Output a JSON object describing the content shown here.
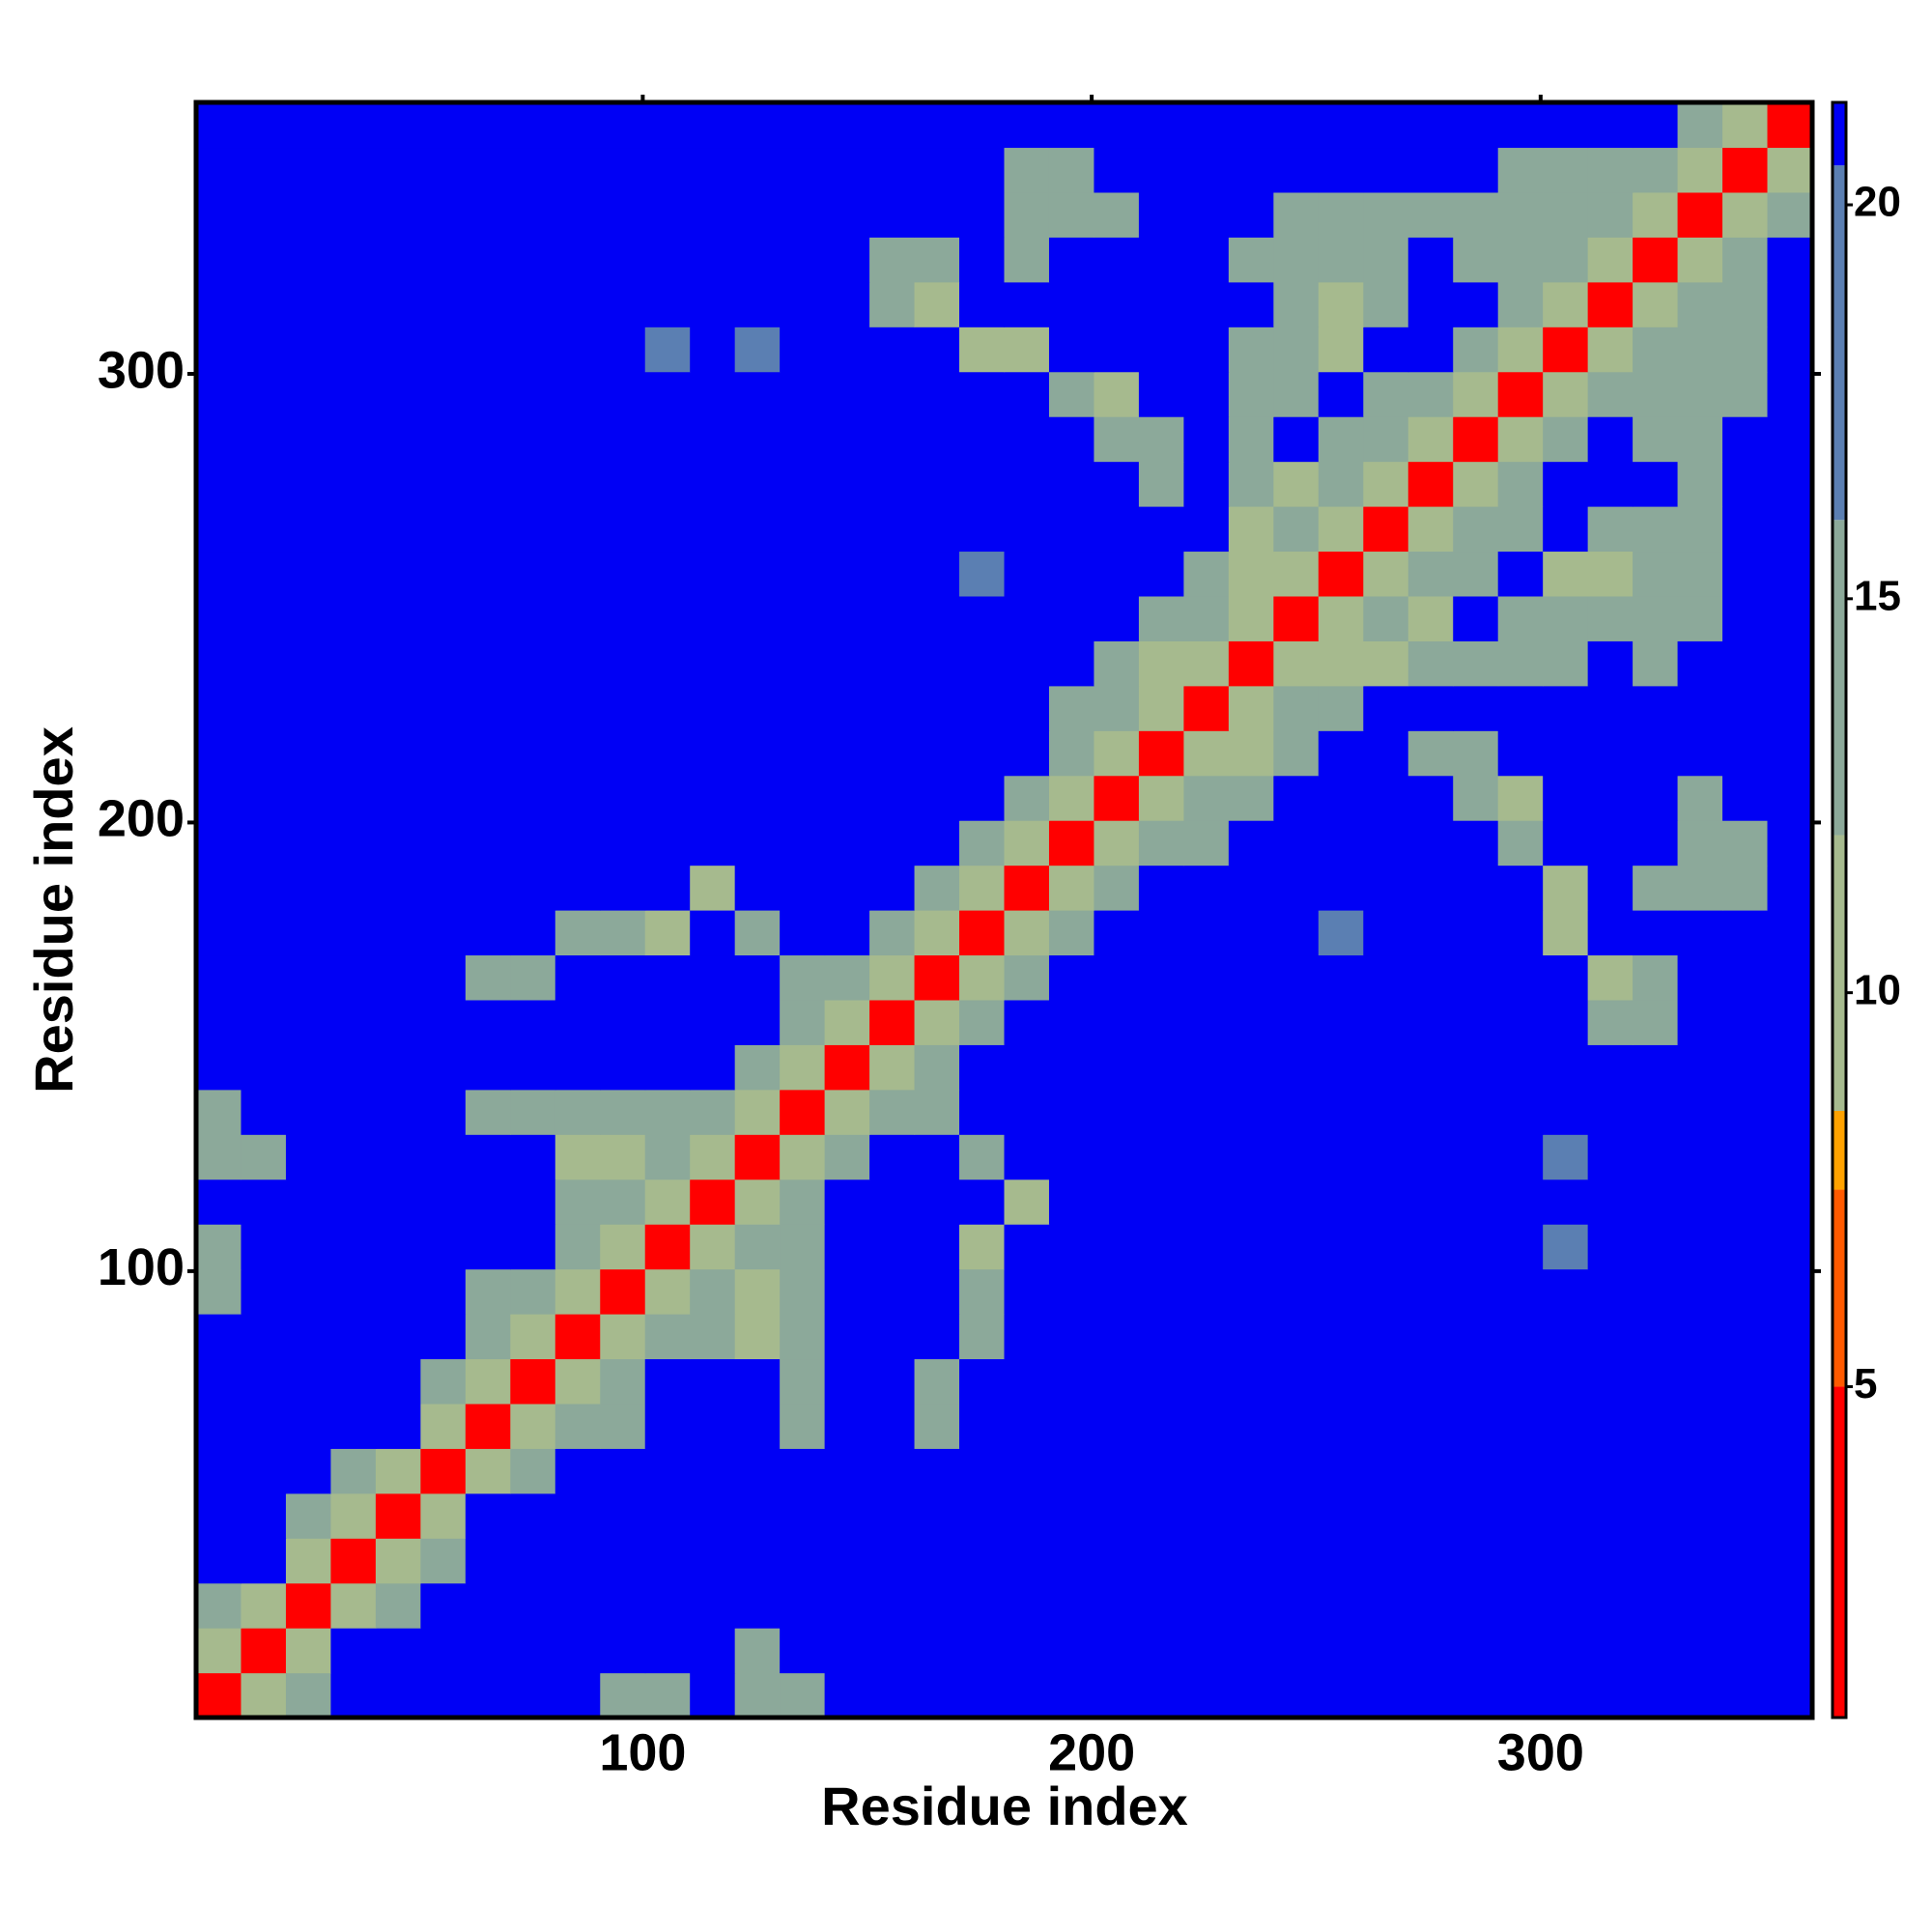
{
  "chart_data": {
    "type": "heatmap",
    "x_label": "Residue index",
    "y_label": "Residue index",
    "bins": [
      0.5,
      10.5,
      20.5,
      30.5,
      40.5,
      50.5,
      60.5,
      70.5,
      80.5,
      90.5,
      100.5,
      110.5,
      120.5,
      130.5,
      140.5,
      150.5,
      160.5,
      170.5,
      180.5,
      190.5,
      200.5,
      210.5,
      220.5,
      230.5,
      240.5,
      250.5,
      260.5,
      270.5,
      280.5,
      290.5,
      300.5,
      310.5,
      320.5,
      330.5,
      340.5,
      350.5,
      360.5
    ],
    "xlim": [
      0.5,
      360.5
    ],
    "ylim": [
      0.5,
      360.5
    ],
    "xticks": [
      100,
      200,
      300
    ],
    "yticks": [
      100,
      200,
      300
    ],
    "zlim": [
      0.8,
      21.3
    ],
    "zticks": [
      5,
      10,
      15,
      20
    ],
    "colorscale": [
      [
        5,
        "#ff0000"
      ],
      [
        7.5,
        "#ff5a00"
      ],
      [
        8.5,
        "#ffa200"
      ],
      [
        12,
        "#a6ba8e"
      ],
      [
        16,
        "#8ca99a"
      ],
      [
        20.5,
        "#5b7fb2"
      ],
      [
        21.3,
        "#0000f5"
      ]
    ],
    "z": [
      [
        4,
        11,
        16,
        21,
        21,
        21,
        21,
        21,
        21,
        16,
        16,
        21,
        15,
        15,
        21,
        21,
        21,
        21,
        21,
        21,
        21,
        21,
        21,
        21,
        21,
        21,
        21,
        21,
        21,
        21,
        21,
        21,
        21,
        21,
        21,
        21
      ],
      [
        11,
        4,
        11,
        21,
        21,
        21,
        21,
        21,
        21,
        21,
        21,
        21,
        15,
        21,
        21,
        21,
        21,
        21,
        21,
        21,
        21,
        21,
        21,
        21,
        21,
        21,
        21,
        21,
        21,
        21,
        21,
        21,
        21,
        21,
        21,
        21
      ],
      [
        16,
        11,
        4,
        11,
        16,
        21,
        21,
        21,
        21,
        21,
        21,
        21,
        21,
        21,
        21,
        21,
        21,
        21,
        21,
        21,
        21,
        21,
        21,
        21,
        21,
        21,
        21,
        21,
        21,
        21,
        21,
        21,
        21,
        21,
        21,
        21
      ],
      [
        21,
        21,
        11,
        4,
        11,
        16,
        21,
        21,
        21,
        21,
        21,
        21,
        21,
        21,
        21,
        21,
        21,
        21,
        21,
        21,
        21,
        21,
        21,
        21,
        21,
        21,
        21,
        21,
        21,
        21,
        21,
        21,
        21,
        21,
        21,
        21
      ],
      [
        21,
        21,
        16,
        11,
        4,
        11,
        21,
        21,
        21,
        21,
        21,
        21,
        21,
        21,
        21,
        21,
        21,
        21,
        21,
        21,
        21,
        21,
        21,
        21,
        21,
        21,
        21,
        21,
        21,
        21,
        21,
        21,
        21,
        21,
        21,
        21
      ],
      [
        21,
        21,
        21,
        16,
        11,
        4,
        11,
        14,
        21,
        21,
        21,
        21,
        21,
        21,
        21,
        21,
        21,
        21,
        21,
        21,
        21,
        21,
        21,
        21,
        21,
        21,
        21,
        21,
        21,
        21,
        21,
        21,
        21,
        21,
        21,
        21
      ],
      [
        21,
        21,
        21,
        21,
        21,
        11,
        4,
        11,
        13,
        15,
        21,
        21,
        21,
        14,
        21,
        21,
        15,
        21,
        21,
        21,
        21,
        21,
        21,
        21,
        21,
        21,
        21,
        21,
        21,
        21,
        21,
        21,
        21,
        21,
        21,
        21
      ],
      [
        21,
        21,
        21,
        21,
        21,
        14,
        11,
        4,
        11,
        14,
        21,
        21,
        21,
        13,
        21,
        21,
        14,
        21,
        21,
        21,
        21,
        21,
        21,
        21,
        21,
        21,
        21,
        21,
        21,
        21,
        21,
        21,
        21,
        21,
        21,
        21
      ],
      [
        21,
        21,
        21,
        21,
        21,
        21,
        13,
        11,
        4,
        11,
        15,
        15,
        12,
        13,
        21,
        21,
        21,
        13,
        21,
        21,
        21,
        21,
        21,
        21,
        21,
        21,
        21,
        21,
        21,
        21,
        21,
        21,
        21,
        21,
        21,
        21
      ],
      [
        16,
        21,
        21,
        21,
        21,
        21,
        15,
        14,
        11,
        4,
        11,
        13,
        12,
        14,
        21,
        21,
        21,
        13,
        21,
        21,
        21,
        21,
        21,
        21,
        21,
        21,
        21,
        21,
        21,
        21,
        21,
        21,
        21,
        21,
        21,
        21
      ],
      [
        16,
        21,
        21,
        21,
        21,
        21,
        21,
        21,
        15,
        11,
        4,
        11,
        13,
        15,
        21,
        21,
        21,
        12,
        21,
        21,
        21,
        21,
        21,
        21,
        21,
        21,
        21,
        21,
        21,
        21,
        18,
        21,
        21,
        21,
        21,
        21
      ],
      [
        21,
        21,
        21,
        21,
        21,
        21,
        21,
        21,
        15,
        13,
        11,
        4,
        11,
        14,
        21,
        21,
        21,
        21,
        12,
        21,
        21,
        21,
        21,
        21,
        21,
        21,
        21,
        21,
        21,
        21,
        21,
        21,
        21,
        21,
        21,
        21
      ],
      [
        15,
        15,
        21,
        21,
        21,
        21,
        21,
        21,
        12,
        12,
        13,
        11,
        4,
        11,
        16,
        21,
        21,
        13,
        21,
        21,
        21,
        21,
        21,
        21,
        21,
        21,
        21,
        21,
        21,
        21,
        18,
        21,
        21,
        21,
        21,
        21
      ],
      [
        15,
        21,
        21,
        21,
        21,
        21,
        14,
        13,
        13,
        14,
        15,
        14,
        11,
        4,
        11,
        15,
        13,
        21,
        21,
        21,
        21,
        21,
        21,
        21,
        21,
        21,
        21,
        21,
        21,
        21,
        21,
        21,
        21,
        21,
        21,
        21
      ],
      [
        21,
        21,
        21,
        21,
        21,
        21,
        21,
        21,
        21,
        21,
        21,
        21,
        16,
        11,
        4,
        11,
        14,
        21,
        21,
        21,
        21,
        21,
        21,
        21,
        21,
        21,
        21,
        21,
        21,
        21,
        21,
        21,
        21,
        21,
        21,
        21
      ],
      [
        21,
        21,
        21,
        21,
        21,
        21,
        21,
        21,
        21,
        21,
        21,
        21,
        21,
        15,
        11,
        4,
        11,
        15,
        21,
        21,
        21,
        21,
        21,
        21,
        21,
        21,
        21,
        21,
        21,
        21,
        21,
        14,
        15,
        21,
        21,
        21
      ],
      [
        21,
        21,
        21,
        21,
        21,
        21,
        15,
        14,
        21,
        21,
        21,
        21,
        21,
        13,
        14,
        11,
        4,
        11,
        15,
        21,
        21,
        21,
        21,
        21,
        21,
        21,
        21,
        21,
        21,
        21,
        21,
        12,
        14,
        21,
        21,
        21
      ],
      [
        21,
        21,
        21,
        21,
        21,
        21,
        21,
        21,
        13,
        13,
        12,
        21,
        13,
        21,
        21,
        15,
        11,
        4,
        11,
        15,
        21,
        21,
        21,
        21,
        21,
        17,
        21,
        21,
        21,
        21,
        12,
        21,
        21,
        21,
        21,
        21
      ],
      [
        21,
        21,
        21,
        21,
        21,
        21,
        21,
        21,
        21,
        21,
        21,
        12,
        21,
        21,
        21,
        21,
        15,
        11,
        4,
        11,
        14,
        21,
        21,
        21,
        21,
        21,
        21,
        21,
        21,
        21,
        12,
        21,
        15,
        14,
        15,
        21
      ],
      [
        21,
        21,
        21,
        21,
        21,
        21,
        21,
        21,
        21,
        21,
        21,
        21,
        21,
        21,
        21,
        21,
        21,
        15,
        11,
        4,
        11,
        13,
        15,
        21,
        21,
        21,
        21,
        21,
        21,
        13,
        21,
        21,
        21,
        13,
        15,
        21
      ],
      [
        21,
        21,
        21,
        21,
        21,
        21,
        21,
        21,
        21,
        21,
        21,
        21,
        21,
        21,
        21,
        21,
        21,
        21,
        14,
        11,
        4,
        11,
        13,
        14,
        21,
        21,
        21,
        21,
        13,
        12,
        21,
        21,
        21,
        15,
        21,
        21
      ],
      [
        21,
        21,
        21,
        21,
        21,
        21,
        21,
        21,
        21,
        21,
        21,
        21,
        21,
        21,
        21,
        21,
        21,
        21,
        21,
        13,
        11,
        4,
        11,
        12,
        13,
        21,
        21,
        14,
        14,
        21,
        21,
        21,
        21,
        21,
        21,
        21
      ],
      [
        21,
        21,
        21,
        21,
        21,
        21,
        21,
        21,
        21,
        21,
        21,
        21,
        21,
        21,
        21,
        21,
        21,
        21,
        21,
        15,
        13,
        11,
        4,
        11,
        14,
        15,
        21,
        21,
        21,
        21,
        21,
        21,
        21,
        21,
        21,
        21
      ],
      [
        21,
        21,
        21,
        21,
        21,
        21,
        21,
        21,
        21,
        21,
        21,
        21,
        21,
        21,
        21,
        21,
        21,
        21,
        21,
        21,
        14,
        12,
        11,
        4,
        11,
        12,
        12,
        13,
        13,
        13,
        14,
        21,
        16,
        21,
        21,
        21
      ],
      [
        21,
        21,
        21,
        21,
        21,
        21,
        21,
        21,
        21,
        21,
        21,
        21,
        21,
        21,
        21,
        21,
        21,
        21,
        21,
        21,
        21,
        13,
        14,
        11,
        4,
        11,
        13,
        12,
        21,
        13,
        14,
        13,
        14,
        15,
        21,
        21
      ],
      [
        21,
        21,
        21,
        21,
        21,
        21,
        21,
        21,
        21,
        21,
        21,
        21,
        21,
        21,
        21,
        21,
        21,
        17,
        21,
        21,
        21,
        21,
        15,
        12,
        11,
        4,
        11,
        14,
        14,
        21,
        12,
        12,
        14,
        14,
        21,
        21
      ],
      [
        21,
        21,
        21,
        21,
        21,
        21,
        21,
        21,
        21,
        21,
        21,
        21,
        21,
        21,
        21,
        21,
        21,
        21,
        21,
        21,
        21,
        21,
        21,
        12,
        13,
        11,
        4,
        11,
        14,
        15,
        21,
        13,
        15,
        14,
        21,
        21
      ],
      [
        21,
        21,
        21,
        21,
        21,
        21,
        21,
        21,
        21,
        21,
        21,
        21,
        21,
        21,
        21,
        21,
        21,
        21,
        21,
        21,
        21,
        14,
        21,
        13,
        12,
        14,
        11,
        4,
        11,
        14,
        21,
        21,
        21,
        14,
        21,
        21
      ],
      [
        21,
        21,
        21,
        21,
        21,
        21,
        21,
        21,
        21,
        21,
        21,
        21,
        21,
        21,
        21,
        21,
        21,
        21,
        21,
        21,
        13,
        14,
        21,
        13,
        21,
        14,
        14,
        11,
        4,
        11,
        13,
        21,
        14,
        14,
        21,
        21
      ],
      [
        21,
        21,
        21,
        21,
        21,
        21,
        21,
        21,
        21,
        21,
        21,
        21,
        21,
        21,
        21,
        21,
        21,
        21,
        21,
        13,
        12,
        21,
        21,
        13,
        13,
        21,
        15,
        14,
        11,
        4,
        11,
        14,
        13,
        13,
        15,
        21
      ],
      [
        21,
        21,
        21,
        21,
        21,
        21,
        21,
        21,
        21,
        21,
        18,
        21,
        18,
        21,
        21,
        21,
        21,
        12,
        12,
        21,
        21,
        21,
        21,
        14,
        14,
        12,
        21,
        21,
        13,
        11,
        4,
        11,
        13,
        13,
        14,
        21
      ],
      [
        21,
        21,
        21,
        21,
        21,
        21,
        21,
        21,
        21,
        21,
        21,
        21,
        21,
        21,
        21,
        14,
        12,
        21,
        21,
        21,
        21,
        21,
        21,
        21,
        13,
        12,
        13,
        21,
        21,
        14,
        11,
        4,
        11,
        14,
        13,
        21
      ],
      [
        21,
        21,
        21,
        21,
        21,
        21,
        21,
        21,
        21,
        21,
        21,
        21,
        21,
        21,
        21,
        15,
        14,
        21,
        15,
        21,
        21,
        21,
        21,
        16,
        14,
        14,
        15,
        21,
        14,
        13,
        13,
        11,
        4,
        11,
        14,
        21
      ],
      [
        21,
        21,
        21,
        21,
        21,
        21,
        21,
        21,
        21,
        21,
        21,
        21,
        21,
        21,
        21,
        21,
        21,
        21,
        14,
        13,
        15,
        21,
        21,
        21,
        15,
        14,
        14,
        14,
        14,
        13,
        13,
        14,
        11,
        4,
        11,
        15
      ],
      [
        21,
        21,
        21,
        21,
        21,
        21,
        21,
        21,
        21,
        21,
        21,
        21,
        21,
        21,
        21,
        21,
        21,
        21,
        15,
        15,
        21,
        21,
        21,
        21,
        21,
        21,
        21,
        21,
        21,
        15,
        14,
        13,
        14,
        11,
        4,
        11
      ],
      [
        21,
        21,
        21,
        21,
        21,
        21,
        21,
        21,
        21,
        21,
        21,
        21,
        21,
        21,
        21,
        21,
        21,
        21,
        21,
        21,
        21,
        21,
        21,
        21,
        21,
        21,
        21,
        21,
        21,
        21,
        21,
        21,
        21,
        15,
        11,
        4
      ]
    ]
  }
}
